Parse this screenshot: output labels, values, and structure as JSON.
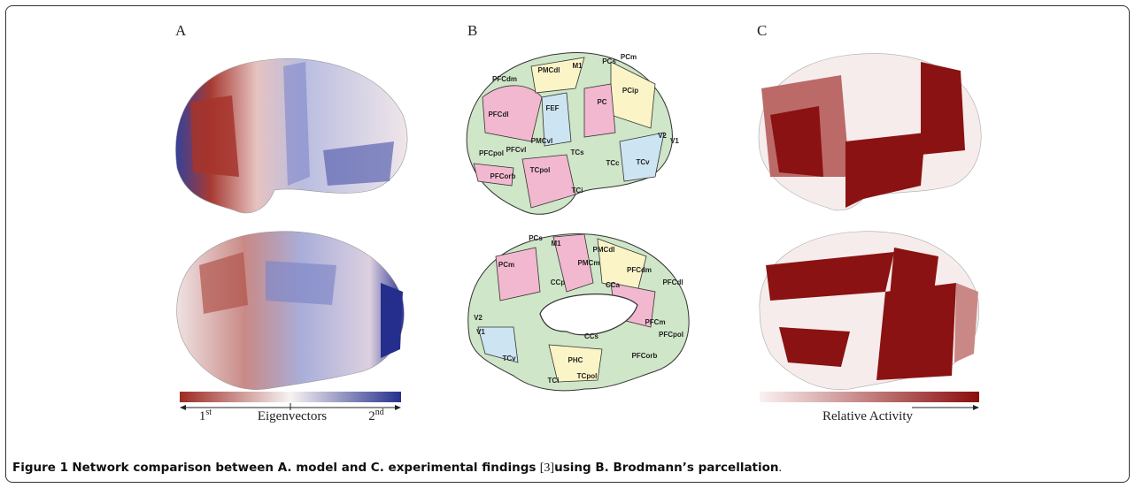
{
  "figure": {
    "panels": [
      "A",
      "B",
      "C"
    ],
    "panel_b": {
      "lateral_labels": [
        "PCm",
        "PMCdl",
        "M1",
        "PFCdm",
        "PCs",
        "PCip",
        "PC",
        "FEF",
        "PFCdl",
        "PMCvl",
        "PFCvl",
        "PFCpol",
        "TCs",
        "TCc",
        "TCv",
        "TCpol",
        "PFCorb",
        "TCi",
        "V2",
        "V1"
      ],
      "medial_labels": [
        "PCs",
        "M1",
        "PMCdl",
        "PCm",
        "PMCm",
        "PFCdm",
        "PFCdl",
        "CCp",
        "CCa",
        "V2",
        "PFCm",
        "PFCpol",
        "TCv",
        "CCs",
        "PHC",
        "PFCorb",
        "TCpol",
        "TCi",
        "V1"
      ]
    },
    "colorbar_a": {
      "left": "1",
      "left_sup": "st",
      "label": "Eigenvectors",
      "right": "2",
      "right_sup": "nd"
    },
    "colorbar_c": {
      "label": "Relative Activity"
    }
  },
  "caption": {
    "label": "Figure 1",
    "text": "Network comparison between A. model and C. experimental findings",
    "ref": "[3]",
    "text2": "using B. Brodmann’s parcellation",
    "end": "."
  }
}
